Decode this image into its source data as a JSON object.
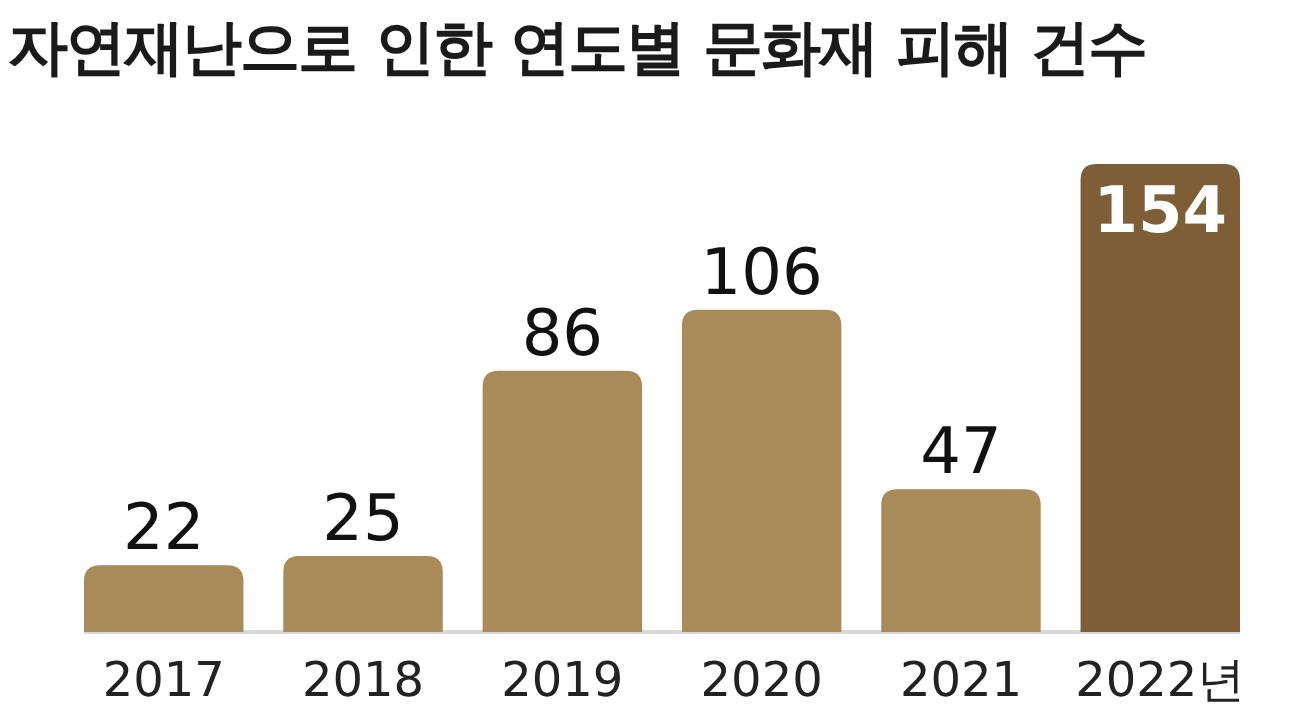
{
  "chart_data": {
    "type": "bar",
    "title": "자연재난으로 인한 연도별 문화재 피해 건수",
    "categories": [
      "2017",
      "2018",
      "2019",
      "2020",
      "2021",
      "2022년"
    ],
    "values": [
      22,
      25,
      86,
      106,
      47,
      154
    ],
    "colors": [
      "#a88b58",
      "#a88b58",
      "#a88b58",
      "#a88b58",
      "#a88b58",
      "#7d5e36"
    ],
    "data_labels": true
  }
}
